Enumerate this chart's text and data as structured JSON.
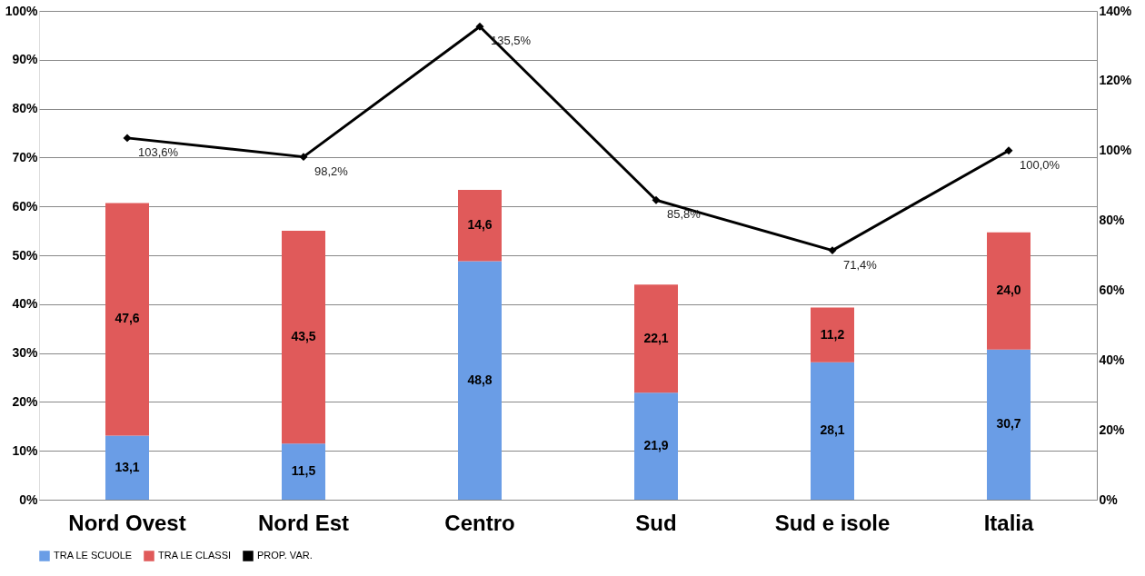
{
  "chart_data": {
    "type": "bar",
    "stacked": true,
    "categories": [
      "Nord Ovest",
      "Nord Est",
      "Centro",
      "Sud",
      "Sud e isole",
      "Italia"
    ],
    "series": [
      {
        "name": "TRA LE SCUOLE",
        "color": "#6a9de6",
        "values": [
          13.1,
          11.5,
          48.8,
          21.9,
          28.1,
          30.7
        ],
        "value_labels": [
          "13,1",
          "11,5",
          "48,8",
          "21,9",
          "28,1",
          "30,7"
        ]
      },
      {
        "name": "TRA LE CLASSI",
        "color": "#e05a5a",
        "values": [
          47.6,
          43.5,
          14.6,
          22.1,
          11.2,
          24.0
        ],
        "value_labels": [
          "47,6",
          "43,5",
          "14,6",
          "22,1",
          "11,2",
          "24,0"
        ]
      },
      {
        "name": "PROP. VAR.",
        "type": "line",
        "axis": "y2",
        "color": "#000000",
        "marker": "diamond",
        "values": [
          103.6,
          98.2,
          135.5,
          85.8,
          71.4,
          100.0
        ],
        "value_labels": [
          "103,6%",
          "98,2%",
          "135,5%",
          "85,8%",
          "71,4%",
          "100,0%"
        ]
      }
    ],
    "ylim": [
      0,
      100
    ],
    "yticks": [
      {
        "value": 0,
        "label": "0%"
      },
      {
        "value": 10,
        "label": "10%"
      },
      {
        "value": 20,
        "label": "20%"
      },
      {
        "value": 30,
        "label": "30%"
      },
      {
        "value": 40,
        "label": "40%"
      },
      {
        "value": 50,
        "label": "50%"
      },
      {
        "value": 60,
        "label": "60%"
      },
      {
        "value": 70,
        "label": "70%"
      },
      {
        "value": 80,
        "label": "80%"
      },
      {
        "value": 90,
        "label": "90%"
      },
      {
        "value": 100,
        "label": "100%"
      }
    ],
    "y2lim": [
      0,
      140
    ],
    "y2ticks": [
      {
        "value": 0,
        "label": "0%"
      },
      {
        "value": 20,
        "label": "20%"
      },
      {
        "value": 40,
        "label": "40%"
      },
      {
        "value": 60,
        "label": "60%"
      },
      {
        "value": 80,
        "label": "80%"
      },
      {
        "value": 100,
        "label": "100%"
      },
      {
        "value": 120,
        "label": "120%"
      },
      {
        "value": 140,
        "label": "140%"
      }
    ],
    "grid": "y",
    "legend": "bottom"
  }
}
